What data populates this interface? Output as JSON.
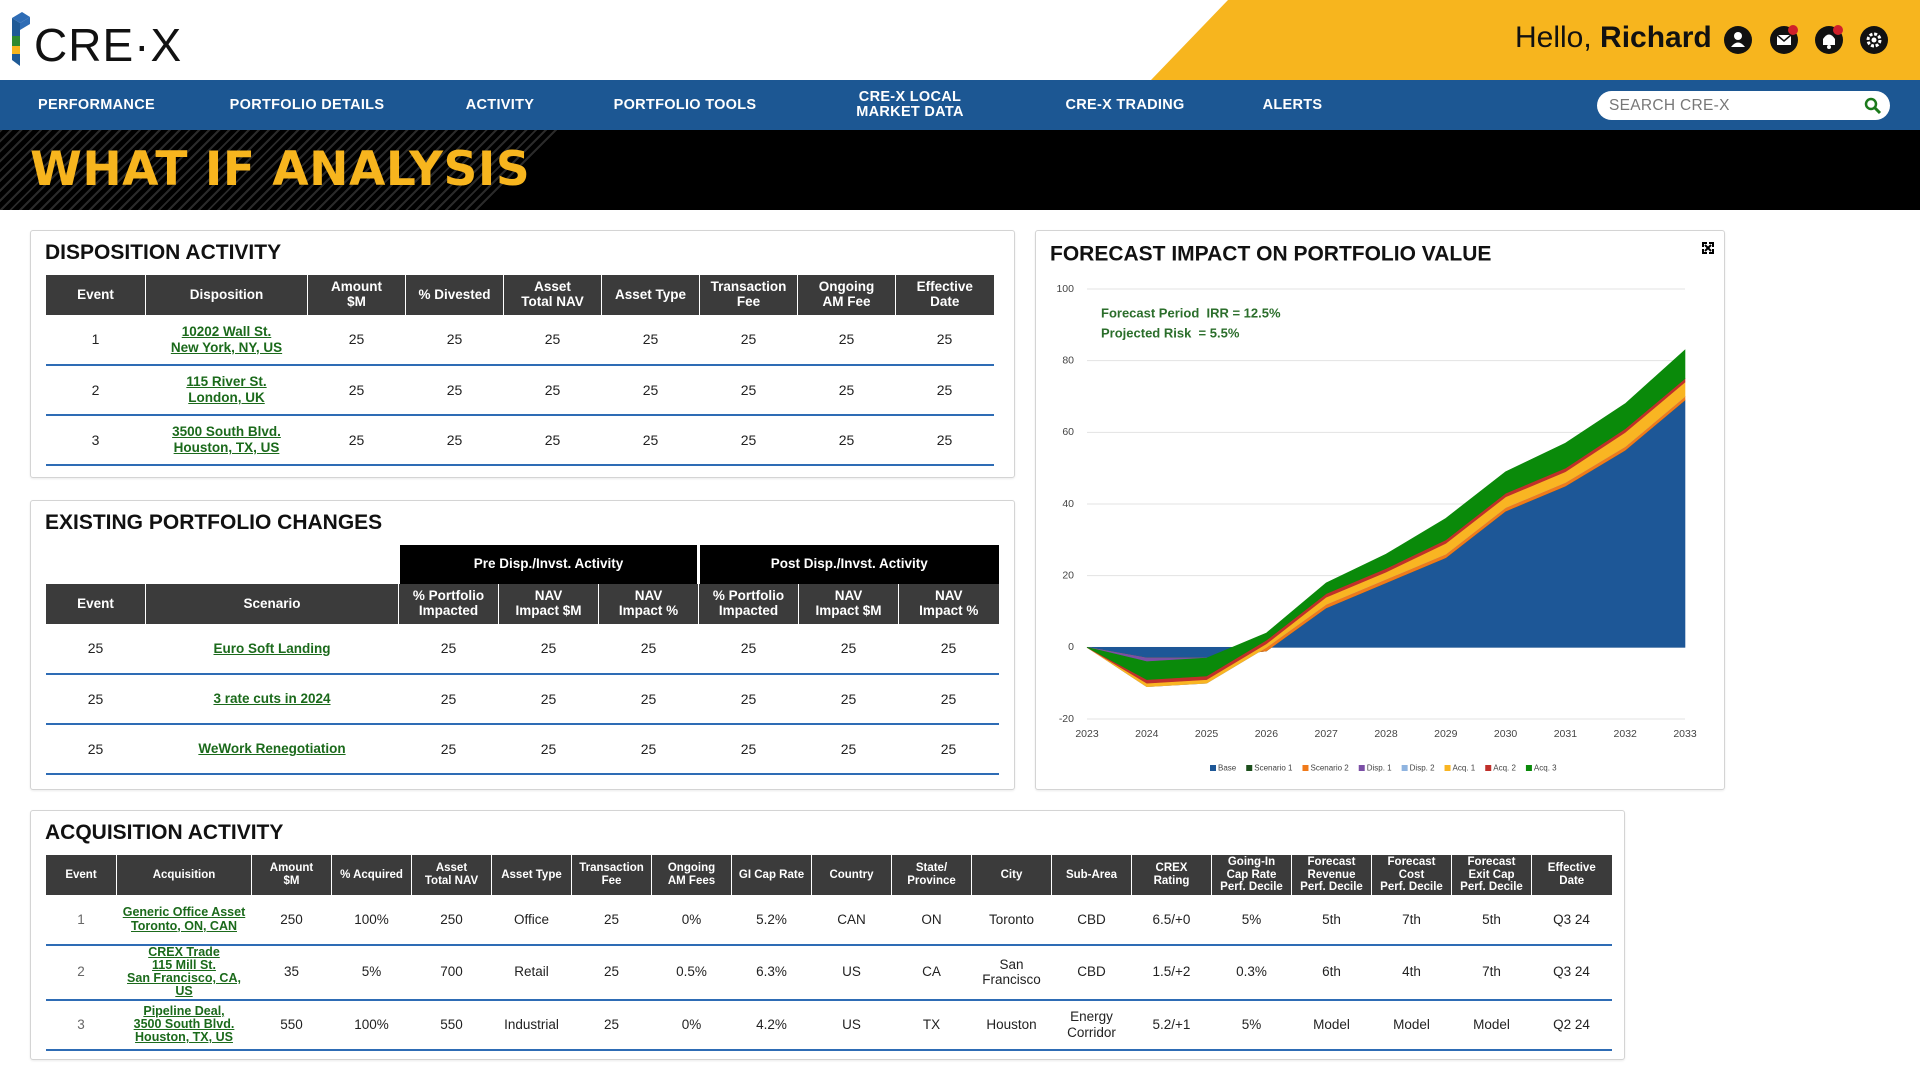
{
  "header": {
    "logo": "CRE·X",
    "greeting": "Hello,",
    "user": "Richard"
  },
  "nav": [
    "PERFORMANCE",
    "PORTFOLIO DETAILS",
    "ACTIVITY",
    "PORTFOLIO TOOLS",
    "CRE-X LOCAL\nMARKET DATA",
    "CRE-X TRADING",
    "ALERTS"
  ],
  "search_placeholder": "SEARCH CRE-X",
  "page_title": "WHAT IF ANALYSIS",
  "disposition": {
    "title": "DISPOSITION ACTIVITY",
    "columns": [
      "Event",
      "Disposition",
      "Amount\n$M",
      "% Divested",
      "Asset\nTotal NAV",
      "Asset Type",
      "Transaction\nFee",
      "Ongoing\nAM Fee",
      "Effective\nDate"
    ],
    "rows": [
      [
        1,
        "10202 Wall St.\nNew York, NY, US",
        25,
        25,
        25,
        25,
        25,
        25,
        25
      ],
      [
        2,
        "115 River St.\nLondon, UK",
        25,
        25,
        25,
        25,
        25,
        25,
        25
      ],
      [
        3,
        "3500 South Blvd.\nHouston, TX, US",
        25,
        25,
        25,
        25,
        25,
        25,
        25
      ]
    ]
  },
  "portfolio_changes": {
    "title": "EXISTING PORTFOLIO CHANGES",
    "groups": [
      "Pre Disp./Invst. Activity",
      "Post Disp./Invst. Activity"
    ],
    "columns": [
      "Event",
      "Scenario",
      "% Portfolio\nImpacted",
      "NAV\nImpact $M",
      "NAV\nImpact %",
      "% Portfolio\nImpacted",
      "NAV\nImpact $M",
      "NAV\nImpact %"
    ],
    "rows": [
      [
        25,
        "Euro Soft Landing",
        25,
        25,
        25,
        25,
        25,
        25
      ],
      [
        25,
        "3 rate cuts in 2024",
        25,
        25,
        25,
        25,
        25,
        25
      ],
      [
        25,
        "WeWork Renegotiation",
        25,
        25,
        25,
        25,
        25,
        25
      ]
    ]
  },
  "acquisition": {
    "title": "ACQUISITION ACTIVITY",
    "columns": [
      "Event",
      "Acquisition",
      "Amount\n$M",
      "% Acquired",
      "Asset\nTotal NAV",
      "Asset Type",
      "Transaction\nFee",
      "Ongoing\nAM Fees",
      "GI Cap Rate",
      "Country",
      "State/\nProvince",
      "City",
      "Sub-Area",
      "CREX\nRating",
      "Going-In\nCap Rate\nPerf. Decile",
      "Forecast\nRevenue\nPerf. Decile",
      "Forecast\nCost\nPerf. Decile",
      "Forecast\nExit Cap\nPerf. Decile",
      "Effective\nDate"
    ],
    "rows": [
      [
        1,
        "Generic Office Asset\nToronto, ON, CAN",
        250,
        "100%",
        250,
        "Office",
        25,
        "0%",
        "5.2%",
        "CAN",
        "ON",
        "Toronto",
        "CBD",
        "6.5/+0",
        "5%",
        "5th",
        "7th",
        "5th",
        "Q3 24"
      ],
      [
        2,
        "CREX Trade\n115 Mill St.\nSan Francisco, CA, US",
        35,
        "5%",
        700,
        "Retail",
        25,
        "0.5%",
        "6.3%",
        "US",
        "CA",
        "San Francisco",
        "CBD",
        "1.5/+2",
        "0.3%",
        "6th",
        "4th",
        "7th",
        "Q3 24"
      ],
      [
        3,
        "Pipeline Deal,\n3500 South Blvd.\nHouston, TX, US",
        550,
        "100%",
        550,
        "Industrial",
        25,
        "0%",
        "4.2%",
        "US",
        "TX",
        "Houston",
        "Energy Corridor",
        "5.2/+1",
        "5%",
        "Model",
        "Model",
        "Model",
        "Q2 24"
      ]
    ]
  },
  "chart_data": {
    "type": "stacked_area",
    "title": "FORECAST IMPACT ON PORTFOLIO VALUE",
    "annotations": [
      "Forecast Period  IRR = 12.5%",
      "Projected Risk  = 5.5%"
    ],
    "x": [
      2023,
      2024,
      2025,
      2026,
      2027,
      2028,
      2029,
      2030,
      2031,
      2032,
      2033
    ],
    "xlim": [
      2023,
      2033
    ],
    "xticks": [
      2023,
      2024,
      2025,
      2026,
      2027,
      2028,
      2029,
      2030,
      2031,
      2032,
      2033
    ],
    "ylim": [
      -20,
      100
    ],
    "yticks": [
      -20,
      0,
      20,
      40,
      60,
      80,
      100
    ],
    "grid": true,
    "legend": "bottom",
    "series": [
      {
        "name": "Base",
        "color": "#1d5797",
        "values": [
          0,
          -3,
          -3,
          -1,
          11,
          18,
          25,
          38,
          45,
          55,
          69
        ]
      },
      {
        "name": "Scenario 1",
        "color": "#1c4f1c",
        "values": [
          0,
          0,
          0,
          0,
          0,
          0,
          0,
          0,
          0,
          0,
          0
        ]
      },
      {
        "name": "Scenario 2",
        "color": "#f07a1a",
        "values": [
          0,
          0,
          0,
          1,
          1,
          1,
          1,
          1,
          1,
          1,
          1
        ]
      },
      {
        "name": "Disp. 1",
        "color": "#7b4fa6",
        "values": [
          0,
          -8,
          -7,
          0,
          0,
          0,
          0,
          0,
          0,
          0,
          0
        ]
      },
      {
        "name": "Disp. 2",
        "color": "#8fb4e0",
        "values": [
          0,
          0,
          0,
          0,
          0,
          0,
          0,
          0,
          0,
          0,
          0
        ]
      },
      {
        "name": "Acq. 1",
        "color": "#f9b522",
        "values": [
          0,
          1,
          1,
          1,
          2,
          2,
          3,
          3,
          3,
          4,
          4
        ]
      },
      {
        "name": "Acq. 2",
        "color": "#c0302a",
        "values": [
          0,
          1,
          1,
          1,
          1,
          1,
          1,
          1,
          1,
          1,
          1
        ]
      },
      {
        "name": "Acq. 3",
        "color": "#0a8a0a",
        "values": [
          0,
          5,
          5,
          2,
          3,
          4,
          6,
          6,
          7,
          7,
          8
        ]
      }
    ]
  }
}
